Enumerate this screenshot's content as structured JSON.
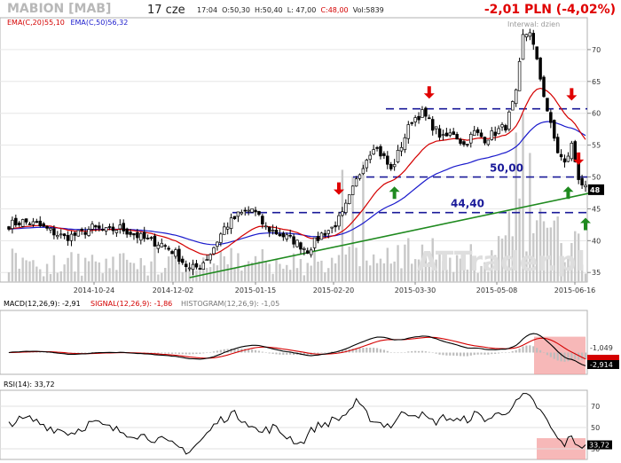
{
  "header": {
    "ticker": "MABION [MAB]",
    "date": "17 cze",
    "time": "17:04",
    "open": "O:50,30",
    "high": "H:50,40",
    "low": "L: 47,00",
    "close": "C:48,00",
    "volume": "Vol:5839",
    "change": "-2,01 PLN (-4,02%)"
  },
  "indicators": {
    "ema20_label": "EMA(C,20)55,10",
    "ema50_label": "EMA(C,50)56,32",
    "interval_label": "Interwal: dzien",
    "watermark": "ATTrader.pl",
    "macd_label": "MACD(12,26,9): -2,91",
    "signal_label": "SIGNAL(12,26,9): -1,86",
    "hist_label": "HISTOGRAM(12,26,9): -1,05",
    "rsi_label": "RSI(14): 33,72"
  },
  "colors": {
    "candle": "#000000",
    "ema20": "#d40000",
    "ema50": "#1a1acc",
    "level_line": "#1a1a99",
    "trend_line": "#1f8a1f",
    "arrow_down": "#e00000",
    "arrow_up": "#1f8a1f",
    "volume": "#c8c8c8",
    "highlight": "#f4a0a0"
  },
  "chart_data": [
    {
      "type": "candlestick",
      "x_tick_labels": [
        "2014-10-24",
        "2014-12-02",
        "2015-01-15",
        "2015-02-20",
        "2015-03-30",
        "2015-05-08",
        "2015-06-16"
      ],
      "y_ticks": [
        35,
        40,
        45,
        50,
        55,
        60,
        65,
        70
      ],
      "ylim": [
        33.5,
        75
      ],
      "current_price_label": "48",
      "levels": [
        {
          "label": "",
          "value": 60.7
        },
        {
          "label": "50,00",
          "value": 50.0
        },
        {
          "label": "44,40",
          "value": 44.4
        }
      ],
      "trend_line": {
        "from": {
          "bar": 52,
          "price": 34.2
        },
        "to": {
          "bar": 166,
          "price": 47.5
        }
      },
      "arrows": [
        {
          "dir": "down",
          "bar": 95,
          "price": 47.2
        },
        {
          "dir": "down",
          "bar": 121,
          "price": 62.3
        },
        {
          "dir": "down",
          "bar": 162,
          "price": 62.0
        },
        {
          "dir": "down",
          "bar": 164,
          "price": 51.9
        },
        {
          "dir": "up",
          "bar": 111,
          "price": 48.5
        },
        {
          "dir": "up",
          "bar": 161,
          "price": 48.5
        },
        {
          "dir": "up",
          "bar": 166,
          "price": 43.6
        }
      ],
      "close_anchors": [
        [
          0,
          42.5
        ],
        [
          4,
          43.0
        ],
        [
          8,
          42.5
        ],
        [
          12,
          41.5
        ],
        [
          16,
          40.5
        ],
        [
          20,
          41.0
        ],
        [
          24,
          42.0
        ],
        [
          28,
          41.5
        ],
        [
          32,
          42.0
        ],
        [
          36,
          41.0
        ],
        [
          40,
          40.0
        ],
        [
          44,
          39.5
        ],
        [
          48,
          38.0
        ],
        [
          52,
          35.5
        ],
        [
          55,
          36.0
        ],
        [
          58,
          38.0
        ],
        [
          62,
          42.0
        ],
        [
          66,
          44.0
        ],
        [
          70,
          45.0
        ],
        [
          74,
          42.0
        ],
        [
          78,
          41.0
        ],
        [
          82,
          40.0
        ],
        [
          86,
          38.5
        ],
        [
          90,
          41.0
        ],
        [
          93,
          42.0
        ],
        [
          96,
          44.0
        ],
        [
          99,
          48.0
        ],
        [
          102,
          52.0
        ],
        [
          105,
          55.0
        ],
        [
          108,
          53.0
        ],
        [
          110,
          51.0
        ],
        [
          113,
          55.0
        ],
        [
          116,
          59.0
        ],
        [
          119,
          60.0
        ],
        [
          122,
          58.0
        ],
        [
          125,
          56.0
        ],
        [
          128,
          57.0
        ],
        [
          131,
          55.0
        ],
        [
          134,
          57.0
        ],
        [
          137,
          56.0
        ],
        [
          140,
          57.0
        ],
        [
          143,
          58.0
        ],
        [
          146,
          63.0
        ],
        [
          148,
          72.0
        ],
        [
          150,
          73.0
        ],
        [
          152,
          68.0
        ],
        [
          154,
          63.0
        ],
        [
          156,
          58.0
        ],
        [
          158,
          54.0
        ],
        [
          160,
          52.0
        ],
        [
          162,
          55.0
        ],
        [
          164,
          50.0
        ],
        [
          166,
          48.0
        ]
      ],
      "ema20_last": 55.1,
      "ema50_last": 56.32
    },
    {
      "type": "line",
      "name": "MACD(12,26,9)",
      "y_ticks_printed": [
        "-1,049",
        "-2,914"
      ],
      "macd_last": -2.91,
      "signal_last": -1.86,
      "histogram_last": -1.05
    },
    {
      "type": "line",
      "name": "RSI(14)",
      "y_ticks": [
        30,
        50,
        70
      ],
      "ylim": [
        20,
        85
      ],
      "rsi_last": 33.72,
      "rsi_anchors": [
        [
          0,
          55
        ],
        [
          6,
          58
        ],
        [
          12,
          50
        ],
        [
          18,
          45
        ],
        [
          24,
          55
        ],
        [
          30,
          48
        ],
        [
          36,
          44
        ],
        [
          42,
          40
        ],
        [
          48,
          32
        ],
        [
          52,
          28
        ],
        [
          56,
          40
        ],
        [
          60,
          55
        ],
        [
          64,
          63
        ],
        [
          68,
          58
        ],
        [
          72,
          45
        ],
        [
          76,
          50
        ],
        [
          80,
          42
        ],
        [
          84,
          35
        ],
        [
          88,
          50
        ],
        [
          92,
          55
        ],
        [
          96,
          60
        ],
        [
          100,
          73
        ],
        [
          103,
          62
        ],
        [
          106,
          55
        ],
        [
          110,
          52
        ],
        [
          114,
          65
        ],
        [
          118,
          63
        ],
        [
          122,
          55
        ],
        [
          126,
          60
        ],
        [
          130,
          55
        ],
        [
          134,
          62
        ],
        [
          138,
          58
        ],
        [
          142,
          64
        ],
        [
          146,
          72
        ],
        [
          148,
          80
        ],
        [
          150,
          77
        ],
        [
          152,
          70
        ],
        [
          154,
          60
        ],
        [
          156,
          50
        ],
        [
          158,
          38
        ],
        [
          160,
          35
        ],
        [
          162,
          40
        ],
        [
          164,
          34
        ],
        [
          166,
          33.7
        ]
      ]
    }
  ]
}
